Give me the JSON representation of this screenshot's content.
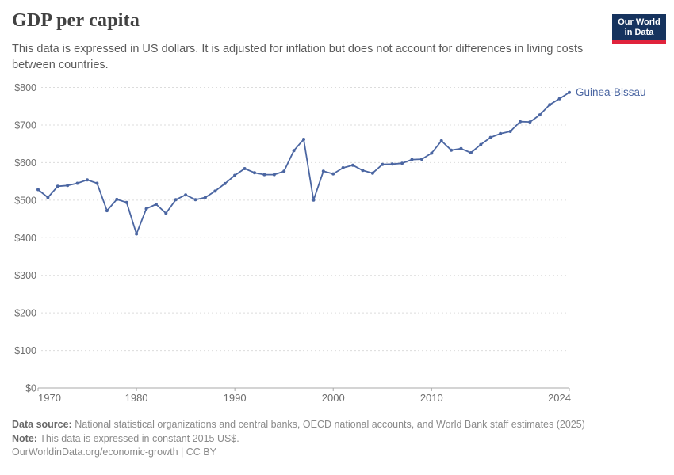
{
  "header": {
    "title": "GDP per capita",
    "subtitle": "This data is expressed in US dollars. It is adjusted for inflation but does not account for differences in living costs between countries.",
    "logo": {
      "line1": "Our World",
      "line2": "in Data"
    }
  },
  "chart_data": {
    "type": "line",
    "title": "GDP per capita",
    "unit": "constant 2015 US$",
    "x": [
      1970,
      1971,
      1972,
      1973,
      1974,
      1975,
      1976,
      1977,
      1978,
      1979,
      1980,
      1981,
      1982,
      1983,
      1984,
      1985,
      1986,
      1987,
      1988,
      1989,
      1990,
      1991,
      1992,
      1993,
      1994,
      1995,
      1996,
      1997,
      1998,
      1999,
      2000,
      2001,
      2002,
      2003,
      2004,
      2005,
      2006,
      2007,
      2008,
      2009,
      2010,
      2011,
      2012,
      2013,
      2014,
      2015,
      2016,
      2017,
      2018,
      2019,
      2020,
      2021,
      2022,
      2023,
      2024
    ],
    "series": [
      {
        "name": "Guinea-Bissau",
        "values": [
          528,
          507,
          537,
          539,
          545,
          554,
          545,
          472,
          502,
          494,
          410,
          477,
          489,
          465,
          501,
          514,
          501,
          507,
          524,
          544,
          566,
          584,
          573,
          568,
          568,
          577,
          632,
          662,
          500,
          577,
          570,
          586,
          593,
          579,
          572,
          595,
          596,
          598,
          608,
          609,
          625,
          658,
          633,
          637,
          626,
          648,
          667,
          677,
          683,
          709,
          708,
          727,
          754,
          770,
          787
        ]
      }
    ],
    "xlim": [
      1970,
      2024
    ],
    "ylim": [
      0,
      800
    ],
    "xticks": [
      1970,
      1980,
      1990,
      2000,
      2010,
      2024
    ],
    "yticks": [
      0,
      100,
      200,
      300,
      400,
      500,
      600,
      700,
      800
    ],
    "ytick_prefix": "$",
    "grid": true,
    "legend_position": "end-of-line-label",
    "line_color": "#4b66a2",
    "label_color": "#4b66a2",
    "axis_text_color": "#6e6e6e",
    "grid_color": "#dcdcdc",
    "axis_line_color": "#a8a8a8"
  },
  "footer": {
    "data_source_label": "Data source:",
    "data_source": "National statistical organizations and central banks, OECD national accounts, and World Bank staff estimates (2025)",
    "note_label": "Note:",
    "note": "This data is expressed in constant 2015 US$.",
    "citation": "OurWorldinData.org/economic-growth | CC BY"
  }
}
